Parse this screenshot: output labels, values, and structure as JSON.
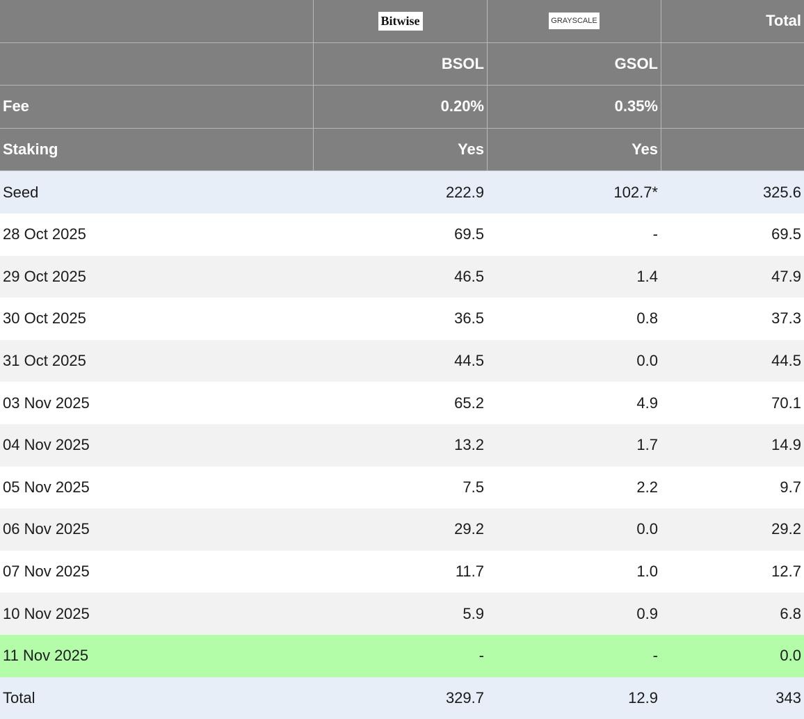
{
  "header": {
    "brands": [
      "Bitwise",
      "GRAYSCALE"
    ],
    "total": "Total",
    "tickers": [
      "BSOL",
      "GSOL"
    ],
    "fee": {
      "label": "Fee",
      "values": [
        "0.20%",
        "0.35%"
      ]
    },
    "staking": {
      "label": "Staking",
      "values": [
        "Yes",
        "Yes"
      ]
    }
  },
  "table": {
    "rows": [
      [
        "Seed",
        "222.9",
        "102.7*",
        "325.6"
      ],
      [
        "28 Oct 2025",
        "69.5",
        "-",
        "69.5"
      ],
      [
        "29 Oct 2025",
        "46.5",
        "1.4",
        "47.9"
      ],
      [
        "30 Oct 2025",
        "36.5",
        "0.8",
        "37.3"
      ],
      [
        "31 Oct 2025",
        "44.5",
        "0.0",
        "44.5"
      ],
      [
        "03 Nov 2025",
        "65.2",
        "4.9",
        "70.1"
      ],
      [
        "04 Nov 2025",
        "13.2",
        "1.7",
        "14.9"
      ],
      [
        "05 Nov 2025",
        "7.5",
        "2.2",
        "9.7"
      ],
      [
        "06 Nov 2025",
        "29.2",
        "0.0",
        "29.2"
      ],
      [
        "07 Nov 2025",
        "11.7",
        "1.0",
        "12.7"
      ],
      [
        "10 Nov 2025",
        "5.9",
        "0.9",
        "6.8"
      ],
      [
        "11 Nov 2025",
        "-",
        "-",
        "0.0"
      ],
      [
        "Total",
        "329.7",
        "12.9",
        "343"
      ]
    ]
  }
}
